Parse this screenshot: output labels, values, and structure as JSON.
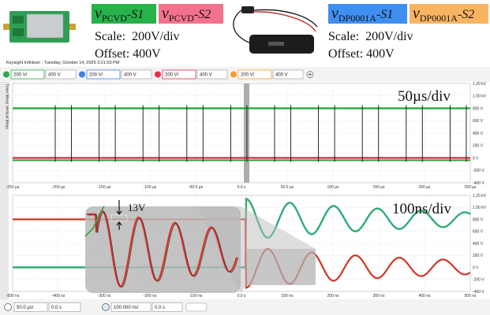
{
  "header": {
    "left_probe": {
      "traces": [
        {
          "symbol": "v",
          "subscript": "PCVD",
          "suffix": "-S1"
        },
        {
          "symbol": "v",
          "subscript": "PCVD",
          "suffix": "-S2"
        }
      ],
      "scale": "Scale:  200V/div",
      "offset": "Offset: 400V"
    },
    "right_probe": {
      "traces": [
        {
          "symbol": "v",
          "subscript": "DP0001A",
          "suffix": "-S1"
        },
        {
          "symbol": "v",
          "subscript": "DP0001A",
          "suffix": "-S2"
        }
      ],
      "scale": "Scale:  200V/div",
      "offset": "Offset: 400V"
    }
  },
  "scope": {
    "title": "Keysight Infiniium : Tuesday, October 14, 2025 3:21:03 PM",
    "channels": [
      {
        "scale": "200 V/",
        "offset": "400 V"
      },
      {
        "scale": "200 V/",
        "offset": "400 V"
      },
      {
        "scale": "200 V/",
        "offset": "400 V"
      },
      {
        "scale": "200 V/",
        "offset": "400 V"
      }
    ],
    "side_tabs": [
      "Timer Meas",
      "Vertical Meas"
    ],
    "main_plot": {
      "timebase": "50µs/div",
      "y_labels": [
        "1.20 kV",
        "1.00 kV",
        "800 V",
        "600 V",
        "400 V",
        "200 V",
        "0 V",
        "-200 V",
        "-400 V"
      ],
      "x_labels": [
        "-250 µs",
        "-200 µs",
        "-150 µs",
        "-100 µs",
        "-50.0 µs",
        "0.0 s",
        "50.0 µs",
        "100 µs",
        "150 µs",
        "200 µs",
        "250 µs"
      ]
    },
    "zoom_plot": {
      "timebase": "100ns/div",
      "annotation": "13V",
      "y_labels": [
        "1.20 kV",
        "1.00 kV",
        "800 V",
        "600 V",
        "400 V",
        "200 V",
        "0 V",
        "-200 V",
        "-400 V"
      ],
      "x_labels": [
        "-500 ns",
        "-400 ns",
        "-300 ns",
        "-200 ns",
        "-100 ns",
        "0.0 s",
        "100 ns",
        "200 ns",
        "300 ns",
        "400 ns",
        "500 ns"
      ]
    },
    "status_bar": {
      "main_scale": "50.0 µs/",
      "main_position": "0.0 s",
      "zoom_scale": "100.000 ns/",
      "zoom_position": "0.0 s"
    }
  }
}
